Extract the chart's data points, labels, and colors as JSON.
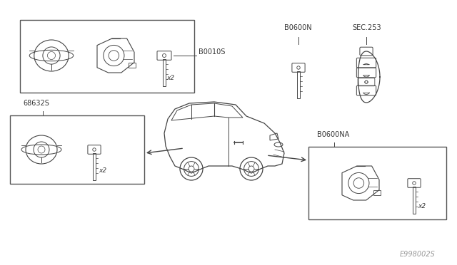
{
  "bg_color": "#ffffff",
  "line_color": "#444444",
  "label_color": "#333333",
  "box_color": "#555555",
  "watermark": "E998002S",
  "labels": {
    "top_box": "B0010S",
    "left_box": "68632S",
    "right_box": "B0600NA",
    "key_blank": "B0600N",
    "fob": "SEC.253"
  },
  "x2_label": "x2"
}
